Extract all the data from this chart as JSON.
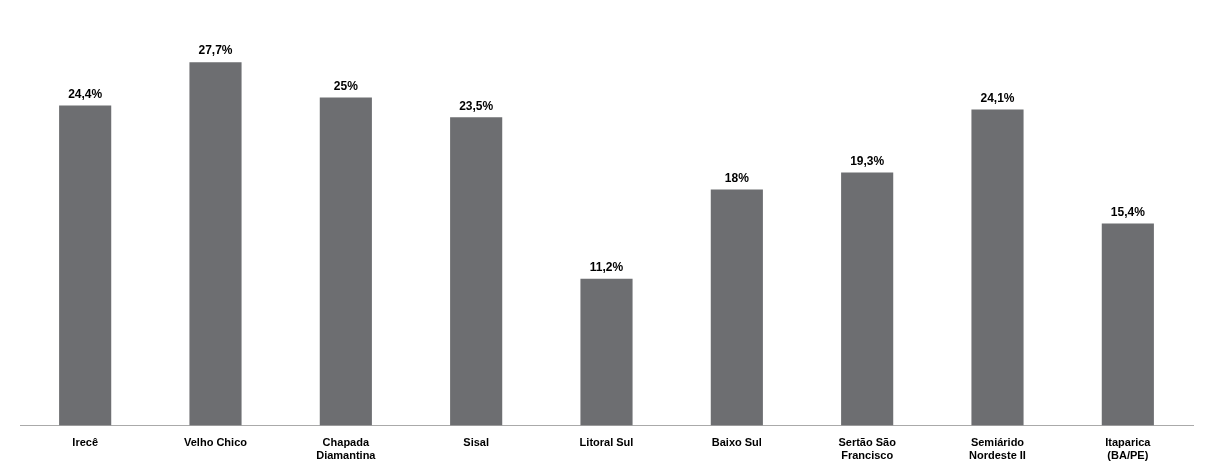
{
  "chart_data": {
    "type": "bar",
    "categories": [
      "Irecê",
      "Velho Chico",
      "Chapada Diamantina",
      "Sisal",
      "Litoral Sul",
      "Baixo Sul",
      "Sertão São Francisco",
      "Semiárido Nordeste II",
      "Itaparica (BA/PE)"
    ],
    "values": [
      24.4,
      27.7,
      25,
      23.5,
      11.2,
      18,
      19.3,
      24.1,
      15.4
    ],
    "value_labels": [
      "24,4%",
      "27,7%",
      "25%",
      "23,5%",
      "11,2%",
      "18%",
      "19,3%",
      "24,1%",
      "15,4%"
    ],
    "color": "#6d6e71",
    "relative": false
  }
}
